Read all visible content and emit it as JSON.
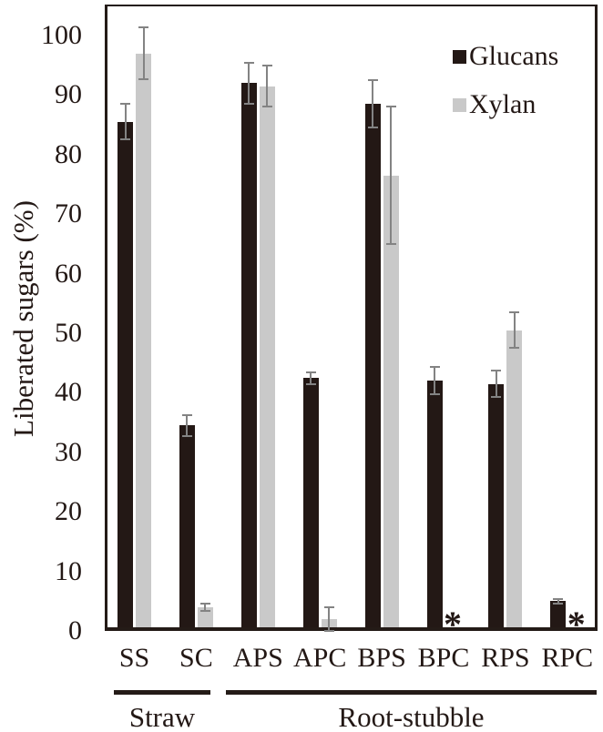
{
  "figure_title": "",
  "y_axis": {
    "label": "Liberated sugars (%)",
    "ticks": [
      0,
      10,
      20,
      30,
      40,
      50,
      60,
      70,
      80,
      90,
      100
    ]
  },
  "colors": {
    "glucans_bar": "#231815",
    "xylan_bar": "#c9c9c9",
    "error_bar": "#838383",
    "axis": "#241b17",
    "text": "#231815"
  },
  "chart_data": {
    "type": "bar",
    "title": "",
    "xlabel": "",
    "ylabel": "Liberated sugars (%)",
    "ylim": [
      0,
      105
    ],
    "yticks": [
      0,
      10,
      20,
      30,
      40,
      50,
      60,
      70,
      80,
      90,
      100
    ],
    "grid": false,
    "legend_position": "top-right",
    "categories": [
      "SS",
      "SC",
      "APS",
      "APC",
      "BPS",
      "BPC",
      "RPS",
      "RPC"
    ],
    "series": [
      {
        "name": "Glucans",
        "color": "#231815",
        "values": [
          85.5,
          34.5,
          92,
          42.5,
          88.5,
          42,
          41.5,
          5
        ],
        "errors": [
          3.0,
          1.8,
          3.4,
          1.0,
          4.0,
          2.3,
          2.2,
          0.4
        ]
      },
      {
        "name": "Xylan",
        "color": "#c9c9c9",
        "values": [
          97,
          4,
          91.5,
          2,
          76.5,
          null,
          50.5,
          null
        ],
        "errors": [
          4.4,
          0.6,
          3.5,
          2.0,
          11.5,
          null,
          3.0,
          null
        ]
      }
    ],
    "missing_marker": "*",
    "missing_marker_meaning": "no xylan bar shown for this category",
    "category_groups": [
      {
        "label": "Straw",
        "from": 0,
        "to": 1
      },
      {
        "label": "Root-stubble",
        "from": 2,
        "to": 7
      }
    ]
  }
}
